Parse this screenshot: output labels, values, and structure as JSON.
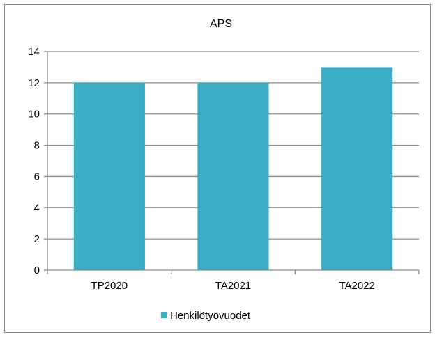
{
  "chart_data": {
    "type": "bar",
    "title": "APS",
    "xlabel": "",
    "ylabel": "",
    "categories": [
      "TP2020",
      "TA2021",
      "TA2022"
    ],
    "series": [
      {
        "name": "Henkilötyövuodet",
        "values": [
          12,
          12,
          13
        ],
        "color": "#3aadc4"
      }
    ],
    "ylim": [
      0,
      14
    ],
    "yticks": [
      0,
      2,
      4,
      6,
      8,
      10,
      12,
      14
    ],
    "grid": true,
    "gridline_color": "#8c8c8c",
    "legend_position": "bottom"
  }
}
